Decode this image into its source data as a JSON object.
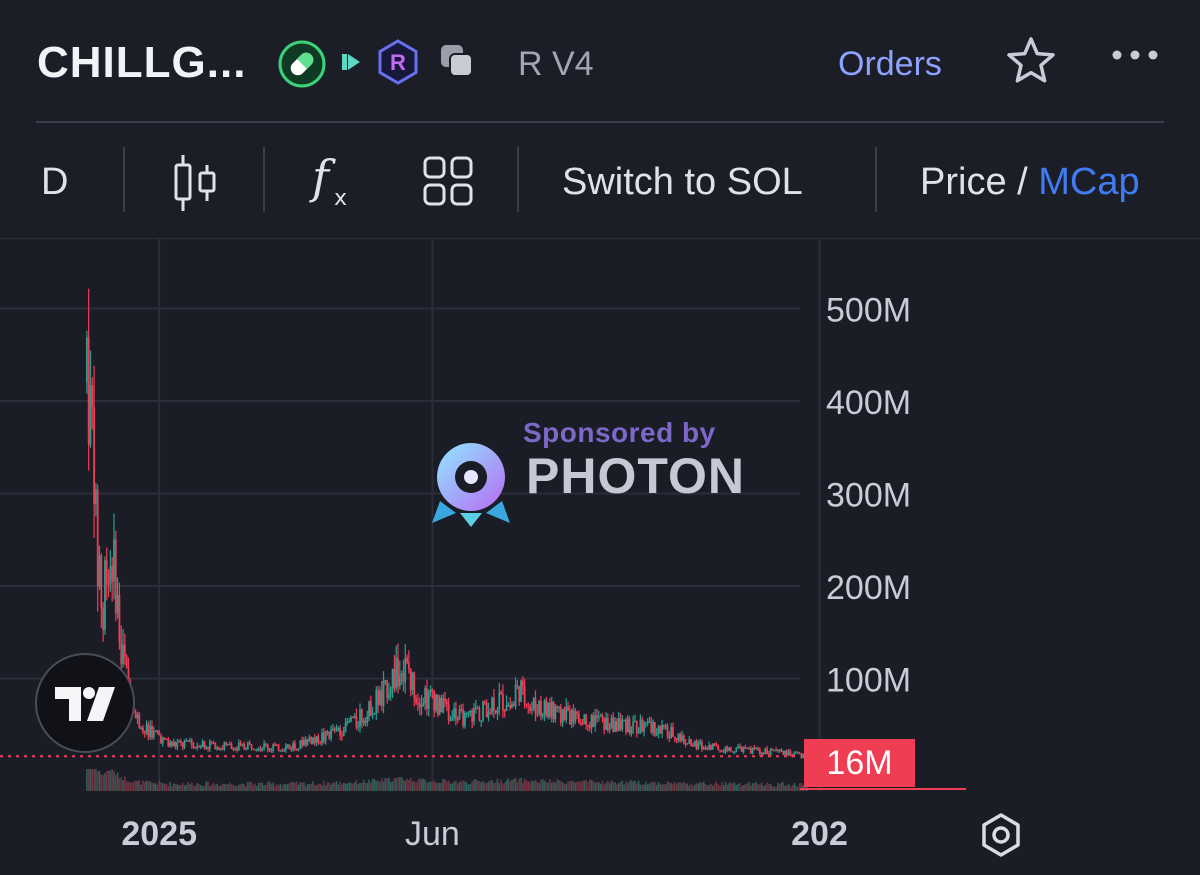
{
  "header": {
    "token_name": "CHILLG...",
    "version": "R V4",
    "orders_label": "Orders",
    "icons": [
      "pill-icon",
      "play-icon",
      "raydium-icon",
      "copy-icon",
      "star-icon",
      "more-icon"
    ]
  },
  "toolbar": {
    "interval_label": "D",
    "switch_label": "Switch to SOL",
    "price_label": "Price /",
    "mcap_label": "MCap",
    "icons": [
      "candlestick-icon",
      "function-icon",
      "layout-grid-icon"
    ]
  },
  "watermark": {
    "sponsored_label": "Sponsored by",
    "brand_label": "PHOTON"
  },
  "current_value_label": "16M",
  "colors": {
    "up": "#2a9d8f",
    "down": "#ef3d54",
    "accent": "#3f7cf3",
    "orders": "#8fa2ff",
    "background": "#1a1c26"
  },
  "chart_data": {
    "type": "candlestick",
    "title": "",
    "xlabel": "",
    "ylabel": "",
    "y_axis_side": "right",
    "ylim": [
      0,
      530
    ],
    "yunit": "M",
    "y_ticks": [
      {
        "value": 500,
        "label": "500M"
      },
      {
        "value": 400,
        "label": "400M"
      },
      {
        "value": 300,
        "label": "300M"
      },
      {
        "value": 200,
        "label": "200M"
      },
      {
        "value": 100,
        "label": "100M"
      }
    ],
    "x_ticks": [
      {
        "date": "2025-01-01",
        "label": "2025"
      },
      {
        "date": "2025-06-01",
        "label": "Jun"
      },
      {
        "date": "2026-01-01",
        "label": "202"
      }
    ],
    "current_value": 16,
    "grid": true,
    "series": [
      {
        "x": [
          "2024-11-22",
          "2024-11-25",
          "2024-11-28",
          "2024-12-01",
          "2024-12-05",
          "2024-12-10",
          "2024-12-15",
          "2024-12-20",
          "2024-12-25",
          "2024-12-30",
          "2025-01-05",
          "2025-01-12",
          "2025-01-20",
          "2025-01-28",
          "2025-02-10",
          "2025-02-25",
          "2025-03-10",
          "2025-03-25",
          "2025-04-10",
          "2025-04-25",
          "2025-05-05",
          "2025-05-15",
          "2025-05-20",
          "2025-05-25",
          "2025-06-01",
          "2025-06-10",
          "2025-06-20",
          "2025-07-01",
          "2025-07-10",
          "2025-07-20",
          "2025-07-28",
          "2025-08-10",
          "2025-08-25",
          "2025-09-10",
          "2025-09-25",
          "2025-10-10",
          "2025-10-25",
          "2025-11-10",
          "2025-11-25",
          "2025-12-10",
          "2025-12-25"
        ],
        "values": [
          420,
          360,
          230,
          180,
          260,
          150,
          90,
          55,
          45,
          38,
          30,
          28,
          30,
          28,
          26,
          27,
          24,
          32,
          42,
          62,
          85,
          115,
          95,
          82,
          75,
          65,
          55,
          68,
          75,
          85,
          70,
          62,
          55,
          50,
          48,
          42,
          28,
          24,
          22,
          20,
          16
        ]
      }
    ]
  }
}
